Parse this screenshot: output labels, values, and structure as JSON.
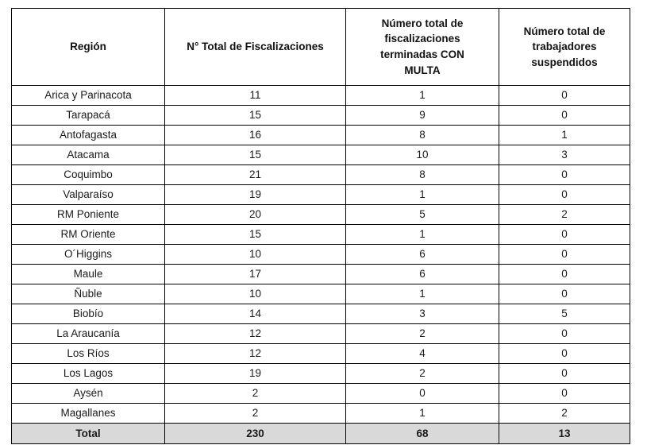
{
  "table": {
    "columns": [
      {
        "key": "region",
        "label": "Región"
      },
      {
        "key": "total",
        "label": "N° Total de Fiscalizaciones"
      },
      {
        "key": "con_multa",
        "label": "Número total de\nfiscalizaciones\nterminadas CON\nMULTA"
      },
      {
        "key": "suspendidos",
        "label": "Número total de\ntrabajadores\nsuspendidos"
      }
    ],
    "rows": [
      {
        "region": "Arica y Parinacota",
        "total": "11",
        "con_multa": "1",
        "suspendidos": "0"
      },
      {
        "region": "Tarapacá",
        "total": "15",
        "con_multa": "9",
        "suspendidos": "0"
      },
      {
        "region": "Antofagasta",
        "total": "16",
        "con_multa": "8",
        "suspendidos": "1"
      },
      {
        "region": "Atacama",
        "total": "15",
        "con_multa": "10",
        "suspendidos": "3"
      },
      {
        "region": "Coquimbo",
        "total": "21",
        "con_multa": "8",
        "suspendidos": "0"
      },
      {
        "region": "Valparaíso",
        "total": "19",
        "con_multa": "1",
        "suspendidos": "0"
      },
      {
        "region": "RM Poniente",
        "total": "20",
        "con_multa": "5",
        "suspendidos": "2"
      },
      {
        "region": "RM Oriente",
        "total": "15",
        "con_multa": "1",
        "suspendidos": "0"
      },
      {
        "region": "O´Higgins",
        "total": "10",
        "con_multa": "6",
        "suspendidos": "0"
      },
      {
        "region": "Maule",
        "total": "17",
        "con_multa": "6",
        "suspendidos": "0"
      },
      {
        "region": "Ñuble",
        "total": "10",
        "con_multa": "1",
        "suspendidos": "0"
      },
      {
        "region": "Biobío",
        "total": "14",
        "con_multa": "3",
        "suspendidos": "5"
      },
      {
        "region": "La Araucanía",
        "total": "12",
        "con_multa": "2",
        "suspendidos": "0"
      },
      {
        "region": "Los Ríos",
        "total": "12",
        "con_multa": "4",
        "suspendidos": "0"
      },
      {
        "region": "Los Lagos",
        "total": "19",
        "con_multa": "2",
        "suspendidos": "0"
      },
      {
        "region": "Aysén",
        "total": "2",
        "con_multa": "0",
        "suspendidos": "0"
      },
      {
        "region": "Magallanes",
        "total": "2",
        "con_multa": "1",
        "suspendidos": "2"
      }
    ],
    "total_row": {
      "region": "Total",
      "total": "230",
      "con_multa": "68",
      "suspendidos": "13"
    },
    "colors": {
      "border": "#000000",
      "total_row_bg": "#d9d9d9",
      "background": "#ffffff"
    }
  }
}
